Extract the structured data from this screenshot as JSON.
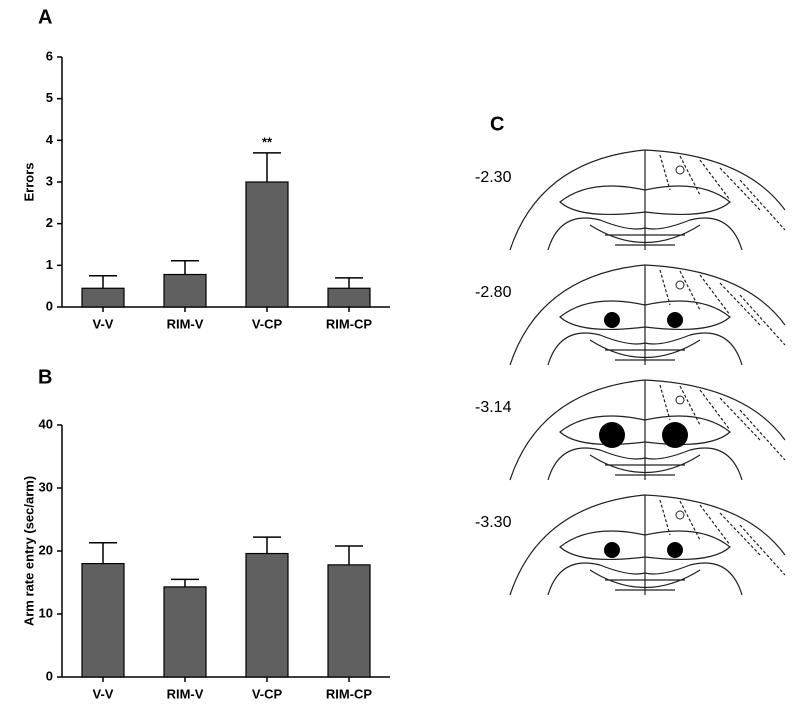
{
  "chart_data": [
    {
      "type": "bar",
      "panel_label": "A",
      "ylabel": "Errors",
      "categories": [
        "V-V",
        "RIM-V",
        "V-CP",
        "RIM-CP"
      ],
      "values": [
        0.45,
        0.78,
        3.0,
        0.45
      ],
      "errors": [
        0.3,
        0.33,
        0.7,
        0.25
      ],
      "color": "#606060",
      "ylim": [
        0,
        6
      ],
      "yticks": [
        0,
        1,
        2,
        3,
        4,
        5,
        6
      ],
      "annotations": [
        {
          "text": "**",
          "x": "V-CP"
        }
      ]
    },
    {
      "type": "bar",
      "panel_label": "B",
      "ylabel": "Arm rate entry (sec/arm)",
      "categories": [
        "V-V",
        "RIM-V",
        "V-CP",
        "RIM-CP"
      ],
      "values": [
        18,
        14.3,
        19.6,
        17.8
      ],
      "errors": [
        3.3,
        1.2,
        2.6,
        3.0
      ],
      "color": "#606060",
      "ylim": [
        0,
        40
      ],
      "yticks": [
        0,
        10,
        20,
        30,
        40
      ]
    }
  ],
  "panel_c": {
    "label": "C",
    "sections": [
      "-2.30",
      "-2.80",
      "-3.14",
      "-3.30"
    ]
  }
}
